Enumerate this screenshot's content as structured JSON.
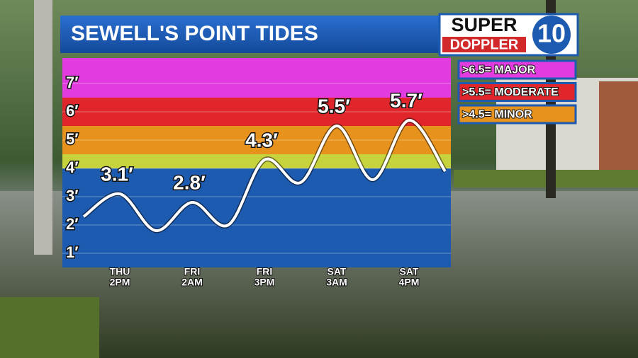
{
  "chart_data": {
    "type": "line",
    "title": "SEWELL'S POINT TIDES",
    "logo": {
      "top": "SUPER",
      "bottom": "DOPPLER",
      "number": "10"
    },
    "categories": [
      null,
      [
        "THU",
        "2PM"
      ],
      null,
      [
        "FRI",
        "2AM"
      ],
      null,
      [
        "FRI",
        "3PM"
      ],
      null,
      [
        "SAT",
        "3AM"
      ],
      null,
      [
        "SAT",
        "4PM"
      ],
      null
    ],
    "values": [
      2.3,
      3.1,
      1.8,
      2.8,
      2.0,
      4.3,
      3.5,
      5.5,
      3.6,
      5.7,
      3.9
    ],
    "value_labels": [
      null,
      "3.1′",
      null,
      "2.8′",
      null,
      "4.3′",
      null,
      "5.5′",
      null,
      "5.7′",
      null
    ],
    "color": "#ffffff",
    "background": "#1d5bb0",
    "ylim": [
      0.5,
      7.9
    ],
    "yticks": [
      {
        "value": 1,
        "label": "1′"
      },
      {
        "value": 2,
        "label": "2′"
      },
      {
        "value": 3,
        "label": "3′"
      },
      {
        "value": 4,
        "label": "4′"
      },
      {
        "value": 5,
        "label": "5′"
      },
      {
        "value": 6,
        "label": "6′"
      },
      {
        "value": 7,
        "label": "7′"
      }
    ],
    "grid": true,
    "bands": [
      {
        "from": 4,
        "to": 4.5,
        "color": "#c6d33c"
      },
      {
        "from": 4.5,
        "to": 5.5,
        "color": "#e8921e",
        "label": ">4.5= MINOR"
      },
      {
        "from": 5.5,
        "to": 6.5,
        "color": "#e0262a",
        "label": ">5.5= MODERATE"
      },
      {
        "from": 6.5,
        "to": 7.9,
        "color": "#e23ce0",
        "label": ">6.5= MAJOR"
      }
    ]
  }
}
